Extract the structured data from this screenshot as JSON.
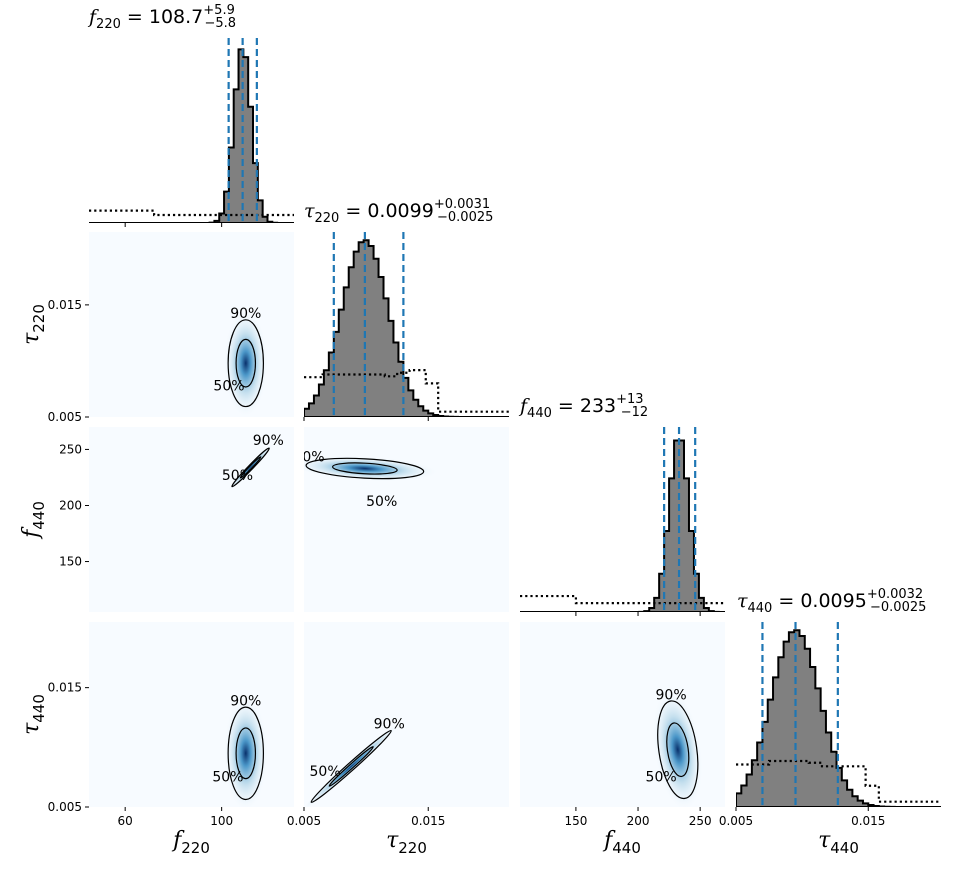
{
  "chart_data": {
    "type": "corner",
    "parameters": [
      {
        "key": "f220",
        "symbol": "f",
        "subscript": "220",
        "range": [
          45,
          130
        ],
        "ticks": [
          60,
          100
        ],
        "tick_labels": [
          "60",
          "100"
        ]
      },
      {
        "key": "tau220",
        "symbol": "τ",
        "subscript": "220",
        "range": [
          0.005,
          0.0215
        ],
        "ticks": [
          0.005,
          0.015
        ],
        "tick_labels": [
          "0.005",
          "0.015"
        ]
      },
      {
        "key": "f440",
        "symbol": "f",
        "subscript": "440",
        "range": [
          105,
          270
        ],
        "ticks": [
          150,
          200,
          250
        ],
        "tick_labels": [
          "150",
          "200",
          "250"
        ]
      },
      {
        "key": "tau440",
        "symbol": "τ",
        "subscript": "440",
        "range": [
          0.005,
          0.0205
        ],
        "ticks": [
          0.005,
          0.015
        ],
        "tick_labels": [
          "0.005",
          "0.015"
        ]
      }
    ],
    "titles": [
      {
        "symbol": "f",
        "sub": "220",
        "eq": " = 108.7",
        "sup": "+5.9",
        "low": "−5.8"
      },
      {
        "symbol": "τ",
        "sub": "220",
        "eq": " = 0.0099",
        "sup": "+0.0031",
        "low": "−0.0025"
      },
      {
        "symbol": "f",
        "sub": "440",
        "eq": " = 233",
        "sup": "+13",
        "low": "−12"
      },
      {
        "symbol": "τ",
        "sub": "440",
        "eq": " = 0.0095",
        "sup": "+0.0032",
        "low": "−0.0025"
      }
    ],
    "marginals": [
      {
        "median": 108.7,
        "lower": 102.9,
        "upper": 114.6,
        "mean": 108.7,
        "sd": 3.6,
        "bin_width": 2.0,
        "prior": [
          [
            45,
            0.07
          ],
          [
            72,
            0.07
          ],
          [
            72,
            0.045
          ],
          [
            130,
            0.045
          ]
        ]
      },
      {
        "median": 0.0099,
        "lower": 0.0074,
        "upper": 0.013,
        "mean": 0.0099,
        "sd": 0.0019,
        "bin_width": 0.0004,
        "prior": [
          [
            0.005,
            0.225
          ],
          [
            0.0065,
            0.225
          ],
          [
            0.0065,
            0.24
          ],
          [
            0.0115,
            0.24
          ],
          [
            0.0115,
            0.23
          ],
          [
            0.0125,
            0.23
          ],
          [
            0.0125,
            0.25
          ],
          [
            0.0135,
            0.25
          ],
          [
            0.0135,
            0.265
          ],
          [
            0.0148,
            0.265
          ],
          [
            0.0148,
            0.19
          ],
          [
            0.0158,
            0.19
          ],
          [
            0.0158,
            0.03
          ],
          [
            0.0215,
            0.03
          ]
        ]
      },
      {
        "median": 233,
        "lower": 221,
        "upper": 246,
        "mean": 233,
        "sd": 8,
        "bin_width": 4,
        "prior": [
          [
            105,
            0.09
          ],
          [
            150,
            0.09
          ],
          [
            150,
            0.05
          ],
          [
            270,
            0.05
          ]
        ]
      },
      {
        "median": 0.0095,
        "lower": 0.007,
        "upper": 0.0127,
        "mean": 0.0095,
        "sd": 0.0019,
        "bin_width": 0.0004,
        "prior": [
          [
            0.005,
            0.24
          ],
          [
            0.0075,
            0.24
          ],
          [
            0.0075,
            0.26
          ],
          [
            0.0105,
            0.26
          ],
          [
            0.0105,
            0.25
          ],
          [
            0.0115,
            0.25
          ],
          [
            0.0115,
            0.23
          ],
          [
            0.0148,
            0.23
          ],
          [
            0.0148,
            0.12
          ],
          [
            0.0158,
            0.12
          ],
          [
            0.0158,
            0.03
          ],
          [
            0.0205,
            0.03
          ]
        ]
      }
    ],
    "joint": [
      {
        "row": 1,
        "col": 0,
        "center": [
          110,
          0.0098
        ],
        "sd": [
          3.4,
          0.0018
        ],
        "rho": 0
      },
      {
        "row": 2,
        "col": 0,
        "center": [
          112,
          234
        ],
        "sd": [
          3.6,
          8
        ],
        "rho": 0.985
      },
      {
        "row": 2,
        "col": 1,
        "center": [
          0.0099,
          233
        ],
        "sd": [
          0.0022,
          4.2
        ],
        "rho": -0.3
      },
      {
        "row": 3,
        "col": 0,
        "center": [
          110,
          0.0095
        ],
        "sd": [
          3.4,
          0.0018
        ],
        "rho": 0
      },
      {
        "row": 3,
        "col": 1,
        "center": [
          0.0088,
          0.0084
        ],
        "sd": [
          0.0015,
          0.0014
        ],
        "rho": 0.99
      },
      {
        "row": 3,
        "col": 2,
        "center": [
          232,
          0.0098
        ],
        "sd": [
          7.5,
          0.0019
        ],
        "rho": -0.3
      }
    ],
    "contour_levels": [
      "50%",
      "90%"
    ],
    "colors": {
      "histogram_fill": "#808080",
      "quantile_lines": "#1f77b4",
      "density_high": "#08306b",
      "density_mid": "#4292c6",
      "density_low": "#f7fbff"
    }
  }
}
